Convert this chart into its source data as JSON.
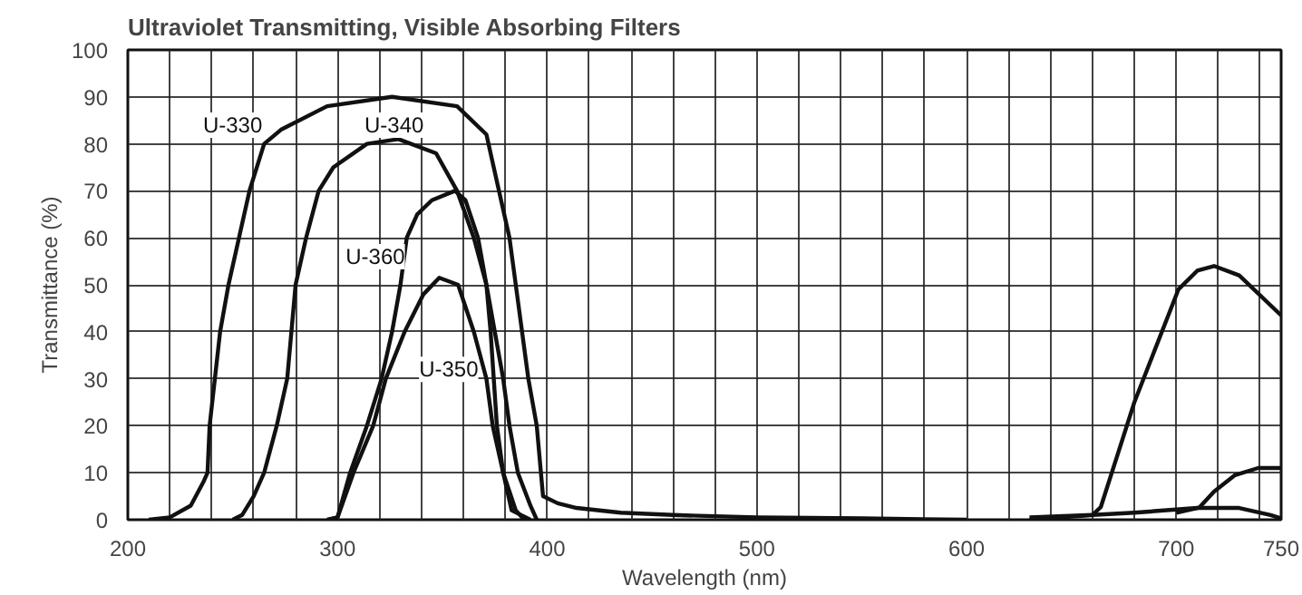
{
  "chart_data": {
    "type": "line",
    "title": "Ultraviolet Transmitting, Visible Absorbing Filters",
    "xlabel": "Wavelength (nm)",
    "ylabel": "Transmittance (%)",
    "xlim": [
      200,
      750
    ],
    "ylim": [
      0,
      100
    ],
    "xticks": [
      200,
      {
        "value": 220,
        "label": null
      },
      {
        "value": 240,
        "label": null
      },
      {
        "value": 260,
        "label": null
      },
      {
        "value": 280,
        "label": null
      },
      300,
      {
        "value": 320,
        "label": null
      },
      {
        "value": 340,
        "label": null
      },
      {
        "value": 360,
        "label": null
      },
      {
        "value": 380,
        "label": null
      },
      400,
      {
        "value": 420,
        "label": null
      },
      {
        "value": 440,
        "label": null
      },
      {
        "value": 460,
        "label": null
      },
      {
        "value": 480,
        "label": null
      },
      500,
      {
        "value": 520,
        "label": null
      },
      {
        "value": 540,
        "label": null
      },
      {
        "value": 560,
        "label": null
      },
      {
        "value": 580,
        "label": null
      },
      600,
      {
        "value": 620,
        "label": null
      },
      {
        "value": 640,
        "label": null
      },
      {
        "value": 660,
        "label": null
      },
      {
        "value": 680,
        "label": null
      },
      700,
      {
        "value": 720,
        "label": null
      },
      {
        "value": 740,
        "label": null
      },
      750
    ],
    "yticks": [
      0,
      10,
      20,
      30,
      40,
      50,
      60,
      70,
      80,
      90,
      100
    ],
    "grid": true,
    "line_style": "solid",
    "series": [
      {
        "color": "#111111",
        "x": [
          210,
          220,
          230,
          236,
          238,
          239,
          244,
          248,
          253,
          258,
          265,
          273,
          295,
          326,
          357,
          371,
          377,
          382,
          385,
          391,
          395,
          397,
          398,
          405,
          414,
          435,
          460,
          500,
          550,
          600
        ],
        "values": [
          0,
          0.5,
          3,
          8,
          10,
          20,
          40,
          50,
          60,
          70,
          80,
          83,
          88,
          90,
          88,
          82,
          70,
          60,
          50,
          30,
          20,
          10,
          5,
          3.5,
          2.5,
          1.5,
          1,
          0.5,
          0.3,
          0
        ]
      },
      {
        "color": "#111111",
        "x": [
          250,
          254.5,
          260,
          265,
          271,
          276,
          278,
          280,
          285,
          291,
          298,
          314,
          329,
          347,
          357,
          365,
          371,
          373,
          376,
          379,
          383,
          392
        ],
        "values": [
          0,
          1,
          5,
          10,
          20,
          30,
          40,
          50,
          60,
          70,
          75,
          80,
          81,
          78,
          70,
          60,
          50,
          40,
          20,
          10,
          2,
          0
        ]
      },
      {
        "color": "#111111",
        "x": [
          295,
          300,
          306,
          314,
          321,
          326,
          330,
          333,
          338,
          345,
          356,
          361,
          367,
          371,
          379,
          382,
          386,
          392,
          395
        ],
        "values": [
          0,
          0.5,
          10,
          20,
          30,
          40,
          50,
          60,
          65,
          68,
          70,
          68,
          60,
          50,
          30,
          20,
          10,
          3,
          0
        ]
      },
      {
        "color": "#111111",
        "x": [
          296,
          300,
          307.6,
          317,
          323,
          332,
          341,
          348.5,
          357.5,
          365,
          371,
          374,
          379,
          385,
          389
        ],
        "values": [
          0,
          0.5,
          10,
          20,
          30,
          40,
          48,
          51.5,
          50,
          40,
          30,
          20,
          10,
          2,
          0
        ]
      },
      {
        "color": "#111111",
        "x": [
          630,
          660,
          664,
          680,
          701,
          710,
          718,
          730,
          750
        ],
        "values": [
          0,
          1,
          2.7,
          25,
          49,
          53,
          54,
          52,
          43.5
        ]
      },
      {
        "color": "#111111",
        "x": [
          700,
          711,
          718,
          728,
          739,
          750
        ],
        "values": [
          1.5,
          2.6,
          6,
          9.5,
          11,
          11
        ]
      },
      {
        "color": "#111111",
        "x": [
          630,
          660,
          680,
          710,
          730,
          745,
          750
        ],
        "values": [
          0.5,
          1,
          1.5,
          2.5,
          2.5,
          1,
          0.3
        ]
      }
    ],
    "annotations": [
      {
        "text": "U-330",
        "x": 250,
        "y": 84
      },
      {
        "text": "U-340",
        "x": 327,
        "y": 84
      },
      {
        "text": "U-360",
        "x": 318,
        "y": 56
      },
      {
        "text": "U-350",
        "x": 353,
        "y": 32
      }
    ]
  }
}
